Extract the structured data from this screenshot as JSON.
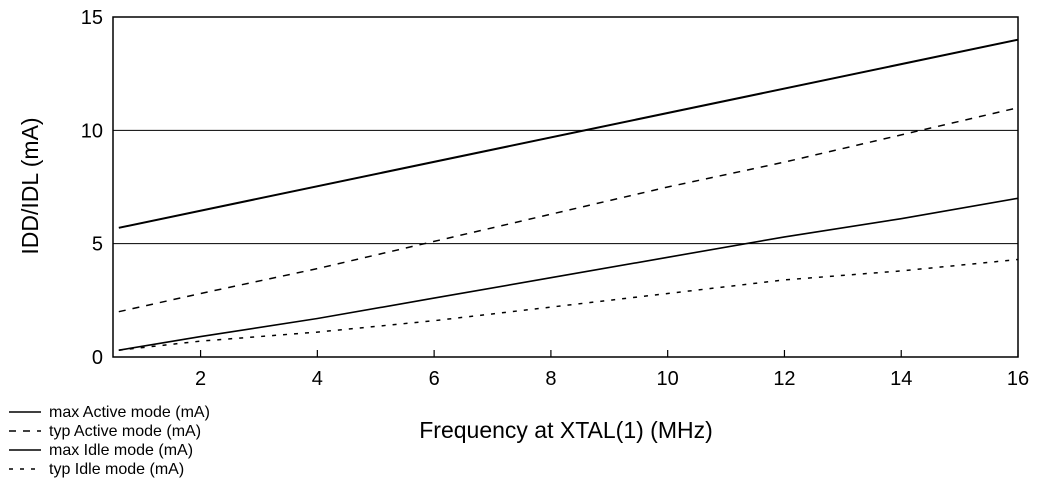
{
  "chart_data": {
    "type": "line",
    "title": "",
    "xlabel": "Frequency at XTAL(1) (MHz)",
    "ylabel": "IDD/IDL (mA)",
    "xlim": [
      0.5,
      16
    ],
    "ylim": [
      0,
      15
    ],
    "x_ticks": [
      2,
      4,
      6,
      8,
      10,
      12,
      14,
      16
    ],
    "y_ticks": [
      0,
      5,
      10,
      15
    ],
    "y_gridlines": [
      5,
      10
    ],
    "legend_position": "bottom-left",
    "series": [
      {
        "name": "max Active mode (mA)",
        "style": "solid",
        "color": "#000000",
        "x": [
          0.6,
          16
        ],
        "y": [
          5.7,
          14.0
        ]
      },
      {
        "name": "typ Active mode (mA)",
        "style": "dashed",
        "color": "#000000",
        "x": [
          0.6,
          2,
          4,
          6,
          8,
          10,
          12,
          14,
          16
        ],
        "y": [
          2.0,
          2.8,
          3.9,
          5.1,
          6.3,
          7.5,
          8.6,
          9.8,
          11.0
        ]
      },
      {
        "name": "max Idle mode (mA)",
        "style": "solid",
        "color": "#000000",
        "x": [
          0.6,
          2,
          4,
          6,
          8,
          10,
          12,
          14,
          16
        ],
        "y": [
          0.3,
          0.9,
          1.7,
          2.6,
          3.5,
          4.4,
          5.3,
          6.1,
          7.0
        ]
      },
      {
        "name": "typ Idle mode (mA)",
        "style": "dotted",
        "color": "#000000",
        "x": [
          0.6,
          2,
          4,
          6,
          8,
          10,
          12,
          14,
          16
        ],
        "y": [
          0.3,
          0.7,
          1.1,
          1.6,
          2.2,
          2.8,
          3.4,
          3.8,
          4.3
        ]
      }
    ]
  }
}
